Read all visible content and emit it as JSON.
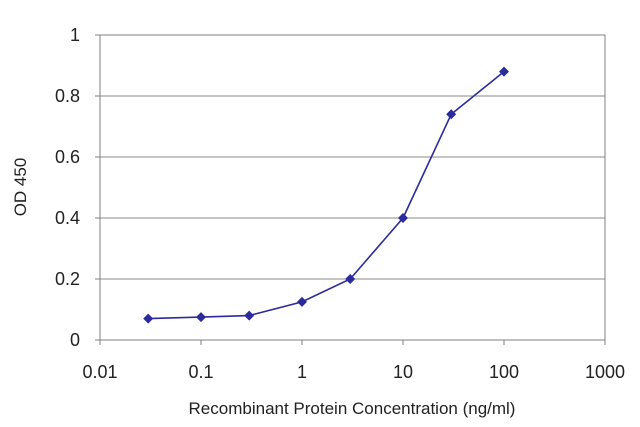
{
  "chart_data": {
    "type": "line",
    "title": "",
    "xlabel": "Recombinant Protein Concentration (ng/ml)",
    "ylabel": "OD 450",
    "x_scale": "log",
    "xlim": [
      0.01,
      1000
    ],
    "ylim": [
      0,
      1
    ],
    "x_ticks": [
      0.01,
      0.1,
      1,
      10,
      100,
      1000
    ],
    "x_tick_labels": [
      "0.01",
      "0.1",
      "1",
      "10",
      "100",
      "1000"
    ],
    "y_ticks": [
      0,
      0.2,
      0.4,
      0.6,
      0.8,
      1
    ],
    "y_tick_labels": [
      "0",
      "0.2",
      "0.4",
      "0.6",
      "0.8",
      "1"
    ],
    "grid": "horizontal",
    "legend": "none",
    "series": [
      {
        "color": "#2b2b9c",
        "marker": "diamond",
        "x": [
          0.03,
          0.1,
          0.3,
          1,
          3,
          10,
          30,
          100
        ],
        "y": [
          0.07,
          0.075,
          0.08,
          0.125,
          0.2,
          0.4,
          0.74,
          0.88
        ]
      }
    ]
  }
}
